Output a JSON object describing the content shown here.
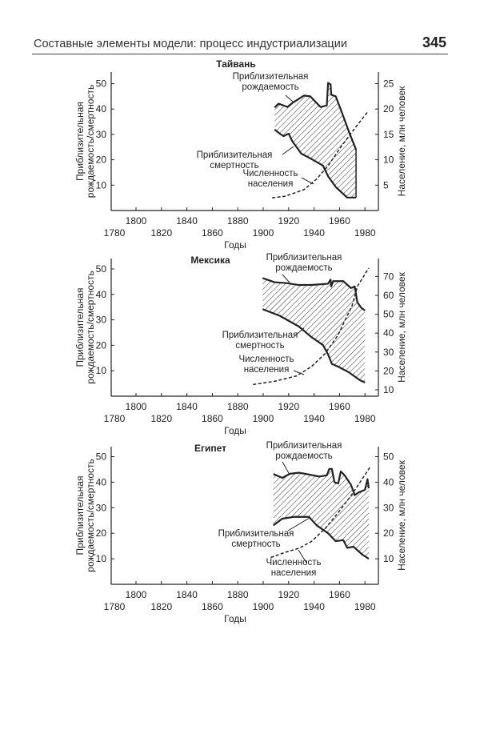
{
  "header": {
    "title": "Составные элементы модели: процесс индустриализации",
    "page_number": "345"
  },
  "chart_data": [
    {
      "type": "area",
      "title": "Тайвань",
      "xlabel": "Годы",
      "ylabel": [
        "Приблизительная",
        "рождаемость/смертность"
      ],
      "ylabel_right": "Население, млн человек",
      "xlim": [
        1780,
        1990
      ],
      "ylim": [
        0,
        55
      ],
      "ylim_right": [
        0,
        27.5
      ],
      "xticks_upper": [
        "1800",
        "1840",
        "1880",
        "1920",
        "1960"
      ],
      "xticks_lower": [
        "1780",
        "1820",
        "1860",
        "1900",
        "1940",
        "1980"
      ],
      "yticks": [
        "10",
        "20",
        "30",
        "40",
        "50"
      ],
      "yticks_right": [
        "5",
        "10",
        "15",
        "20",
        "25"
      ],
      "annotations": {
        "birth": [
          "Приблизительная",
          "рождаемость"
        ],
        "death": [
          "Приблизительная",
          "смертность"
        ],
        "population": [
          "Численность",
          "населения"
        ]
      },
      "series": [
        {
          "name": "birth_rate",
          "axis": "left",
          "x": [
            1909,
            1912,
            1915,
            1919,
            1923,
            1932,
            1937,
            1945,
            1950,
            1951,
            1953,
            1953.5,
            1957,
            1961,
            1968,
            1973
          ],
          "y": [
            40.6,
            42.1,
            41.6,
            40.8,
            42.4,
            45.3,
            45,
            40.8,
            41.4,
            50.3,
            49.7,
            45.6,
            45,
            39.8,
            30.3,
            24
          ]
        },
        {
          "name": "death_rate",
          "axis": "left",
          "x": [
            1909,
            1913,
            1916,
            1920,
            1923,
            1930,
            1938,
            1947,
            1951,
            1957,
            1966,
            1973
          ],
          "y": [
            31.9,
            30.3,
            29.3,
            30.3,
            27.2,
            22.4,
            20.3,
            17.7,
            13.5,
            9.3,
            5.1,
            5.1
          ]
        },
        {
          "name": "population",
          "axis": "right",
          "style": "dashed",
          "x": [
            1907,
            1917,
            1932,
            1942,
            1951,
            1961,
            1972,
            1982
          ],
          "y": [
            2.5,
            2.8,
            4.1,
            6.2,
            8.8,
            12.5,
            16.2,
            19.4
          ]
        }
      ]
    },
    {
      "type": "area",
      "title": "Мексика",
      "xlabel": "Годы",
      "ylabel": [
        "Приблизительная",
        "рождаемость/смертность"
      ],
      "ylabel_right": "Население, млн человек",
      "xlim": [
        1780,
        1990
      ],
      "ylim": [
        0,
        55
      ],
      "ylim_right": [
        3.6,
        78
      ],
      "xticks_upper": [
        "1800",
        "1840",
        "1880",
        "1920",
        "1960"
      ],
      "xticks_lower": [
        "1780",
        "1820",
        "1860",
        "1900",
        "1940",
        "1980"
      ],
      "yticks": [
        "10",
        "20",
        "30",
        "40",
        "50"
      ],
      "yticks_right": [
        "10",
        "20",
        "30",
        "40",
        "50",
        "60",
        "70"
      ],
      "annotations": {
        "birth": [
          "Приблизительная",
          "рождаемость"
        ],
        "death": [
          "Приблизительная",
          "смертность"
        ],
        "population": [
          "Численность",
          "населения"
        ]
      },
      "series": [
        {
          "name": "birth_rate",
          "axis": "left",
          "x": [
            1899.5,
            1909,
            1919,
            1928,
            1938,
            1951,
            1953,
            1953.5,
            1955,
            1963,
            1969,
            1972,
            1974,
            1977,
            1980
          ],
          "y": [
            46.4,
            44.8,
            44.4,
            43.7,
            43.7,
            44.2,
            45.8,
            43.1,
            45.2,
            45.2,
            42.5,
            43.1,
            36.9,
            34.8,
            33.7
          ]
        },
        {
          "name": "death_rate",
          "axis": "left",
          "x": [
            1899.5,
            1913,
            1928,
            1938,
            1947,
            1951,
            1954,
            1959,
            1967,
            1976,
            1980
          ],
          "y": [
            34.2,
            31.6,
            27.4,
            23.2,
            20.1,
            16.4,
            12.7,
            11.6,
            9.5,
            6.3,
            5.4
          ]
        },
        {
          "name": "population",
          "axis": "right",
          "style": "dashed",
          "x": [
            1892,
            1909,
            1926,
            1938,
            1949,
            1959,
            1970,
            1974,
            1983
          ],
          "y": [
            12.8,
            14.5,
            17.3,
            22.3,
            29.4,
            39.2,
            54.8,
            64.7,
            74.5
          ]
        }
      ]
    },
    {
      "type": "area",
      "title": "Египет",
      "xlabel": "Годы",
      "ylabel": [
        "Приблизительная",
        "рождаемость/смертность"
      ],
      "ylabel_right": "Население, млн человек",
      "xlim": [
        1780,
        1990
      ],
      "ylim": [
        0,
        55
      ],
      "ylim_right": [
        0,
        55
      ],
      "xticks_upper": [
        "1800",
        "1840",
        "1880",
        "1920",
        "1960"
      ],
      "xticks_lower": [
        "1780",
        "1820",
        "1860",
        "1900",
        "1940",
        "1980"
      ],
      "yticks": [
        "10",
        "20",
        "30",
        "40",
        "50"
      ],
      "yticks_right": [
        "10",
        "20",
        "30",
        "40",
        "50"
      ],
      "annotations": {
        "birth": [
          "Приблизительная",
          "рождаемость"
        ],
        "death": [
          "Приблизительная",
          "смертность"
        ],
        "population": [
          "Численность",
          "населения"
        ]
      },
      "series": [
        {
          "name": "birth_rate",
          "axis": "left",
          "x": [
            1908,
            1915,
            1921,
            1928,
            1934,
            1944,
            1950,
            1952,
            1954,
            1956,
            1959,
            1961,
            1964,
            1969,
            1972,
            1975,
            1980,
            1982,
            1983
          ],
          "y": [
            43.2,
            41.7,
            43.3,
            43.7,
            43.2,
            42.2,
            42.7,
            45.2,
            45.2,
            40,
            39.5,
            44.2,
            42.7,
            39,
            34.9,
            36,
            37,
            41.2,
            37.6
          ]
        },
        {
          "name": "death_rate",
          "axis": "left",
          "x": [
            1908,
            1915,
            1924,
            1936,
            1942,
            1951,
            1957,
            1963,
            1966,
            1971,
            1978,
            1983
          ],
          "y": [
            23.1,
            25.7,
            26.4,
            26.4,
            23.1,
            20,
            16.9,
            17.3,
            14.3,
            14.7,
            11.6,
            10
          ]
        },
        {
          "name": "population",
          "axis": "right",
          "style": "dashed",
          "x": [
            1906,
            1917,
            1928,
            1938,
            1949,
            1959,
            1970,
            1984
          ],
          "y": [
            10.5,
            12.5,
            14.1,
            16.8,
            22,
            28.1,
            35.4,
            45.9
          ]
        }
      ]
    }
  ]
}
